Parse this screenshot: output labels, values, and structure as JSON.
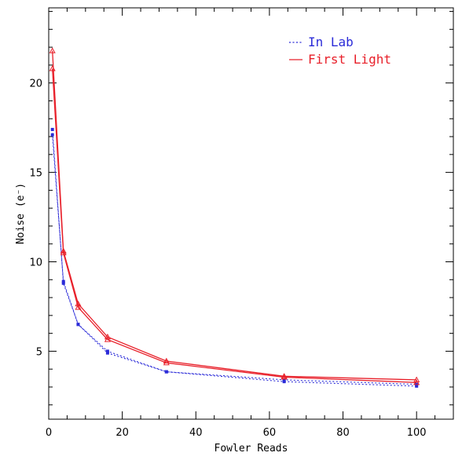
{
  "chart_data": {
    "type": "line",
    "xlabel": "Fowler Reads",
    "ylabel": "Noise (e⁻)",
    "xlim": [
      0,
      110
    ],
    "ylim": [
      1.2,
      24.2
    ],
    "x_ticks": [
      0,
      20,
      40,
      60,
      80,
      100
    ],
    "y_ticks": [
      5,
      10,
      15,
      20
    ],
    "grid": false,
    "legend_position": "top-right",
    "series": [
      {
        "name": "In Lab",
        "color": "#2b2bd8",
        "style": "dotted",
        "marker": "square",
        "lines": [
          {
            "x": [
              1,
              4,
              8,
              16,
              32,
              64,
              100
            ],
            "y": [
              17.4,
              8.8,
              6.5,
              5.0,
              3.85,
              3.4,
              3.15
            ]
          },
          {
            "x": [
              1,
              4,
              8,
              16,
              32,
              64,
              100
            ],
            "y": [
              17.1,
              8.9,
              6.5,
              4.9,
              3.85,
              3.3,
              3.05
            ]
          }
        ]
      },
      {
        "name": "First Light",
        "color": "#e8202a",
        "style": "solid",
        "marker": "open-triangle",
        "lines": [
          {
            "x": [
              1,
              4,
              8,
              16,
              32,
              64,
              100
            ],
            "y": [
              21.8,
              10.6,
              7.65,
              5.8,
              4.45,
              3.6,
              3.4
            ]
          },
          {
            "x": [
              1,
              4,
              8,
              16,
              32,
              64,
              100
            ],
            "y": [
              20.8,
              10.5,
              7.45,
              5.65,
              4.35,
              3.55,
              3.25
            ]
          }
        ]
      }
    ]
  }
}
